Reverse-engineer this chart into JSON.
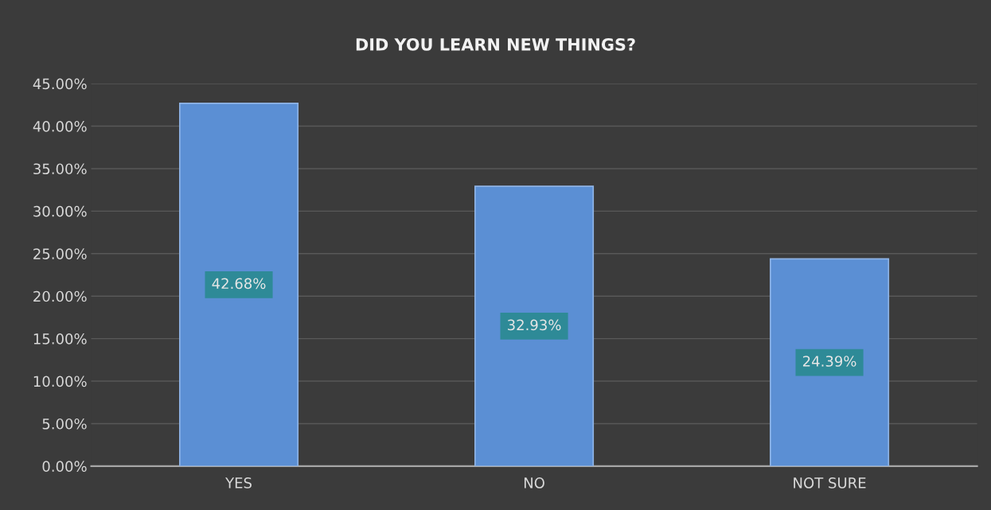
{
  "chart_data": {
    "type": "bar",
    "title": "DID YOU LEARN NEW THINGS?",
    "categories": [
      "YES",
      "NO",
      "NOT SURE"
    ],
    "values": [
      42.68,
      32.93,
      24.39
    ],
    "value_labels": [
      "42.68%",
      "32.93%",
      "24.39%"
    ],
    "color": "#5b8fd4",
    "ylim": [
      0,
      45
    ],
    "yticks": [
      {
        "value": 0,
        "label": "0.00%"
      },
      {
        "value": 5,
        "label": "5.00%"
      },
      {
        "value": 10,
        "label": "10.00%"
      },
      {
        "value": 15,
        "label": "15.00%"
      },
      {
        "value": 20,
        "label": "20.00%"
      },
      {
        "value": 25,
        "label": "25.00%"
      },
      {
        "value": 30,
        "label": "30.00%"
      },
      {
        "value": 35,
        "label": "35.00%"
      },
      {
        "value": 40,
        "label": "40.00%"
      },
      {
        "value": 45,
        "label": "45.00%"
      }
    ],
    "grid": "y"
  }
}
